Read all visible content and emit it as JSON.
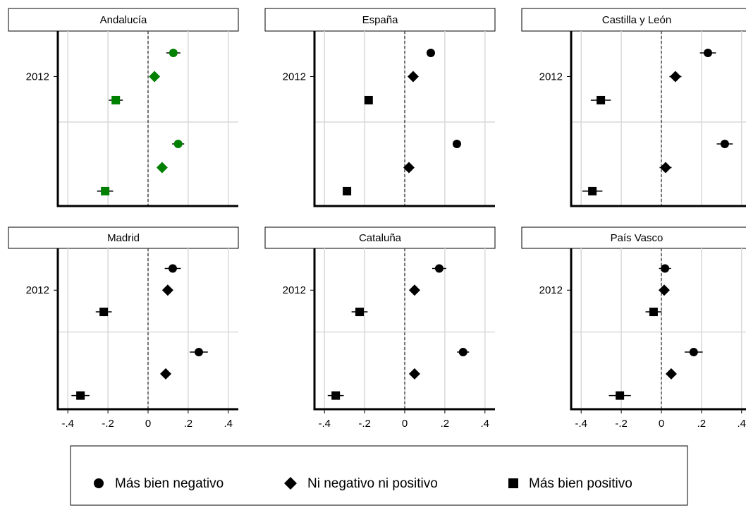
{
  "chart_data": [
    {
      "type": "dot",
      "title": "Andalucía",
      "categories": [
        "2012",
        null
      ],
      "xlim": [
        -0.45,
        0.45
      ],
      "xticks": [
        -0.4,
        -0.2,
        0,
        0.2,
        0.4
      ],
      "xline": 0,
      "grid": true,
      "series": [
        {
          "name": "Más bien negativo",
          "marker": "circle",
          "color": "#008000",
          "values": [
            0.126,
            0.15
          ],
          "errors": [
            0.035,
            0.03
          ]
        },
        {
          "name": "Ni negativo ni positivo",
          "marker": "diamond",
          "color": "#008000",
          "values": [
            0.032,
            0.07
          ],
          "errors": [
            0.02,
            0.02
          ]
        },
        {
          "name": "Más bien positivo",
          "marker": "square",
          "color": "#008000",
          "values": [
            -0.161,
            -0.214
          ],
          "errors": [
            0.035,
            0.04
          ]
        }
      ]
    },
    {
      "type": "dot",
      "title": "España",
      "categories": [
        "2012",
        null
      ],
      "xlim": [
        -0.45,
        0.45
      ],
      "xticks": [
        -0.4,
        -0.2,
        0,
        0.2,
        0.4
      ],
      "xline": 0,
      "grid": true,
      "series": [
        {
          "name": "Más bien negativo",
          "marker": "circle",
          "color": "#000000",
          "values": [
            0.13,
            0.26
          ],
          "errors": [
            0.01,
            0.01
          ]
        },
        {
          "name": "Ni negativo ni positivo",
          "marker": "diamond",
          "color": "#000000",
          "values": [
            0.042,
            0.021
          ],
          "errors": [
            0.01,
            0.01
          ]
        },
        {
          "name": "Más bien positivo",
          "marker": "square",
          "color": "#000000",
          "values": [
            -0.18,
            -0.288
          ],
          "errors": [
            0.01,
            0.01
          ]
        }
      ]
    },
    {
      "type": "dot",
      "title": "Castilla y León",
      "categories": [
        "2012",
        null
      ],
      "xlim": [
        -0.45,
        0.45
      ],
      "xticks": [
        -0.4,
        -0.2,
        0,
        0.2,
        0.4
      ],
      "xline": 0,
      "grid": true,
      "series": [
        {
          "name": "Más bien negativo",
          "marker": "circle",
          "color": "#000000",
          "values": [
            0.232,
            0.316
          ],
          "errors": [
            0.04,
            0.04
          ]
        },
        {
          "name": "Ni negativo ni positivo",
          "marker": "diamond",
          "color": "#000000",
          "values": [
            0.07,
            0.021
          ],
          "errors": [
            0.03,
            0.03
          ]
        },
        {
          "name": "Más bien positivo",
          "marker": "square",
          "color": "#000000",
          "values": [
            -0.302,
            -0.344
          ],
          "errors": [
            0.05,
            0.05
          ]
        }
      ]
    },
    {
      "type": "dot",
      "title": "Madrid",
      "categories": [
        "2012",
        null
      ],
      "xlim": [
        -0.45,
        0.45
      ],
      "xticks": [
        {
          "value": -0.4,
          "label": "-.4"
        },
        {
          "value": -0.2,
          "label": "-.2"
        },
        0,
        {
          "value": 0.2,
          "label": ".2"
        },
        {
          "value": 0.4,
          "label": ".4"
        }
      ],
      "xline": 0,
      "grid": true,
      "series": [
        {
          "name": "Más bien negativo",
          "marker": "circle",
          "color": "#000000",
          "values": [
            0.123,
            0.253
          ],
          "errors": [
            0.04,
            0.045
          ]
        },
        {
          "name": "Ni negativo ni positivo",
          "marker": "diamond",
          "color": "#000000",
          "values": [
            0.098,
            0.088
          ],
          "errors": [
            0.02,
            0.02
          ]
        },
        {
          "name": "Más bien positivo",
          "marker": "square",
          "color": "#000000",
          "values": [
            -0.221,
            -0.337
          ],
          "errors": [
            0.04,
            0.045
          ]
        }
      ]
    },
    {
      "type": "dot",
      "title": "Cataluña",
      "categories": [
        "2012",
        null
      ],
      "xlim": [
        -0.45,
        0.45
      ],
      "xticks": [
        {
          "value": -0.4,
          "label": "-.4"
        },
        {
          "value": -0.2,
          "label": "-.2"
        },
        0,
        {
          "value": 0.2,
          "label": ".2"
        },
        {
          "value": 0.4,
          "label": ".4"
        }
      ],
      "xline": 0,
      "grid": true,
      "series": [
        {
          "name": "Más bien negativo",
          "marker": "circle",
          "color": "#000000",
          "values": [
            0.172,
            0.291
          ],
          "errors": [
            0.035,
            0.03
          ]
        },
        {
          "name": "Ni negativo ni positivo",
          "marker": "diamond",
          "color": "#000000",
          "values": [
            0.049,
            0.049
          ],
          "errors": [
            0.02,
            0.02
          ]
        },
        {
          "name": "Más bien positivo",
          "marker": "square",
          "color": "#000000",
          "values": [
            -0.225,
            -0.344
          ],
          "errors": [
            0.04,
            0.04
          ]
        }
      ]
    },
    {
      "type": "dot",
      "title": "País Vasco",
      "categories": [
        "2012",
        null
      ],
      "xlim": [
        -0.45,
        0.45
      ],
      "xticks": [
        {
          "value": -0.4,
          "label": "-.4"
        },
        {
          "value": -0.2,
          "label": "-.2"
        },
        0,
        {
          "value": 0.2,
          "label": ".2"
        },
        {
          "value": 0.4,
          "label": ".4"
        }
      ],
      "xline": 0,
      "grid": true,
      "series": [
        {
          "name": "Más bien negativo",
          "marker": "circle",
          "color": "#000000",
          "values": [
            0.018,
            0.161
          ],
          "errors": [
            0.03,
            0.045
          ]
        },
        {
          "name": "Ni negativo ni positivo",
          "marker": "diamond",
          "color": "#000000",
          "values": [
            0.014,
            0.049
          ],
          "errors": [
            0.02,
            0.025
          ]
        },
        {
          "name": "Más bien positivo",
          "marker": "square",
          "color": "#000000",
          "values": [
            -0.039,
            -0.207
          ],
          "errors": [
            0.04,
            0.055
          ]
        }
      ]
    }
  ]
}
